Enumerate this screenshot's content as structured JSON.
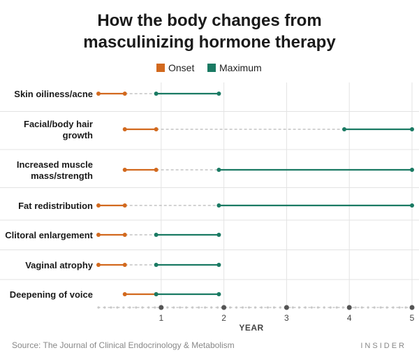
{
  "colors": {
    "onset": "#d2691e",
    "maximum": "#1a7a63",
    "grid": "#e3e3e3",
    "connector": "#b8b8b8",
    "axis": "#c8c8c8",
    "tick": "#555555"
  },
  "source": {
    "label": "Source:",
    "text": "The Journal of Clinical Endocrinology & Metabolism"
  },
  "brand": "INSIDER",
  "chart_data": {
    "type": "dumbbell-range",
    "title_lines": [
      "How the body changes from",
      "masculinizing hormone therapy"
    ],
    "xlabel": "YEAR",
    "xlim": [
      0,
      5
    ],
    "xticks": [
      1,
      2,
      3,
      4,
      5
    ],
    "legend": [
      "Onset",
      "Maximum"
    ],
    "series": [
      {
        "name": "Onset",
        "color_key": "onset"
      },
      {
        "name": "Maximum",
        "color_key": "maximum"
      }
    ],
    "categories": [
      {
        "label_lines": [
          "Skin oiliness/acne"
        ],
        "onset": [
          0,
          0.42
        ],
        "maximum": [
          0.92,
          1.92
        ]
      },
      {
        "label_lines": [
          "Facial/body hair",
          "growth"
        ],
        "onset": [
          0.42,
          0.92
        ],
        "maximum": [
          3.92,
          5
        ]
      },
      {
        "label_lines": [
          "Increased muscle",
          "mass/strength"
        ],
        "onset": [
          0.42,
          0.92
        ],
        "maximum": [
          1.92,
          5
        ]
      },
      {
        "label_lines": [
          "Fat redistribution"
        ],
        "onset": [
          0,
          0.42
        ],
        "maximum": [
          1.92,
          5
        ]
      },
      {
        "label_lines": [
          "Clitoral enlargement"
        ],
        "onset": [
          0,
          0.42
        ],
        "maximum": [
          0.92,
          1.92
        ]
      },
      {
        "label_lines": [
          "Vaginal atrophy"
        ],
        "onset": [
          0,
          0.42
        ],
        "maximum": [
          0.92,
          1.92
        ]
      },
      {
        "label_lines": [
          "Deepening of voice"
        ],
        "onset": [
          0.42,
          0.92
        ],
        "maximum": [
          0.92,
          1.92
        ]
      }
    ]
  }
}
